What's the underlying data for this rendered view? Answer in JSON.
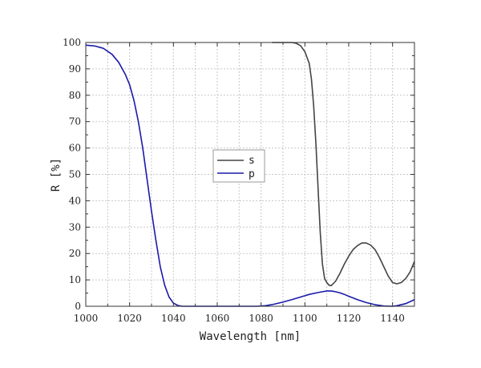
{
  "chart_data": {
    "type": "line",
    "xlabel": "Wavelength [nm]",
    "ylabel": "R [%]",
    "xlim": [
      1000,
      1150
    ],
    "ylim": [
      0,
      100
    ],
    "xticks": [
      "1000",
      "1020",
      "1040",
      "1060",
      "1080",
      "1100",
      "1120",
      "1140"
    ],
    "yticks": [
      "0",
      "10",
      "20",
      "30",
      "40",
      "50",
      "60",
      "70",
      "80",
      "90",
      "100"
    ],
    "grid": true,
    "legend_position": "center",
    "series": [
      {
        "name": "s",
        "color": "#444444",
        "x": [
          1085,
          1090,
          1094,
          1096,
          1098,
          1100,
          1102,
          1103,
          1104,
          1105,
          1106,
          1107,
          1108,
          1109,
          1110,
          1111,
          1112,
          1114,
          1116,
          1118,
          1120,
          1122,
          1124,
          1126,
          1128,
          1130,
          1132,
          1134,
          1136,
          1138,
          1140,
          1142,
          1144,
          1146,
          1148,
          1150
        ],
        "y": [
          100,
          100,
          100,
          99.7,
          98.8,
          96.5,
          92,
          86,
          76,
          62,
          45,
          28,
          16,
          10.5,
          9,
          8,
          7.8,
          9.5,
          12.5,
          16,
          19,
          21.5,
          23,
          24,
          24,
          23.2,
          21.5,
          18.5,
          15,
          11.5,
          9,
          8.5,
          9,
          10.5,
          13,
          17
        ]
      },
      {
        "name": "p",
        "color": "#1a1aaa",
        "x": [
          1000,
          1004,
          1008,
          1012,
          1015,
          1018,
          1020,
          1022,
          1024,
          1026,
          1028,
          1030,
          1032,
          1034,
          1036,
          1038,
          1040,
          1042,
          1044,
          1046,
          1050,
          1060,
          1070,
          1078,
          1082,
          1086,
          1090,
          1094,
          1098,
          1102,
          1106,
          1108,
          1110,
          1112,
          1114,
          1116,
          1118,
          1120,
          1124,
          1128,
          1132,
          1136,
          1140,
          1142,
          1146,
          1150
        ],
        "y": [
          99,
          98.7,
          97.8,
          95.5,
          92.5,
          88,
          84,
          78,
          70,
          60,
          48,
          36,
          25,
          15,
          8,
          3.5,
          1.2,
          0.3,
          0,
          0,
          0,
          0,
          0,
          0,
          0.2,
          0.8,
          1.6,
          2.5,
          3.5,
          4.5,
          5.2,
          5.5,
          5.8,
          5.8,
          5.5,
          5.1,
          4.5,
          3.8,
          2.5,
          1.4,
          0.6,
          0.1,
          0,
          0.2,
          1,
          2.5
        ]
      }
    ]
  }
}
